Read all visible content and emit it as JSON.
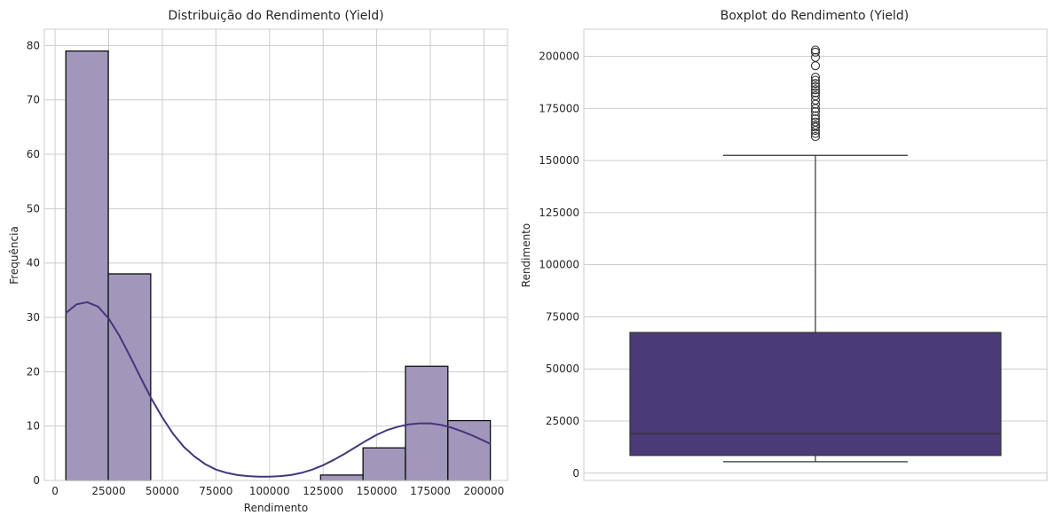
{
  "colors": {
    "hist_fill": "#a197bb",
    "hist_edge": "#000000",
    "kde": "#46357d",
    "box_fill": "#4a3a76",
    "box_line": "#333333",
    "grid": "#cccccc"
  },
  "chart_data": [
    {
      "type": "bar",
      "subtype": "histogram-with-kde",
      "title": "Distribuição do Rendimento (Yield)",
      "xlabel": "Rendimento",
      "ylabel": "Frequência",
      "xlim": [
        -5000,
        211000
      ],
      "ylim": [
        0,
        83
      ],
      "xticks": [
        0,
        25000,
        50000,
        75000,
        100000,
        125000,
        150000,
        175000,
        200000
      ],
      "yticks": [
        0,
        10,
        20,
        30,
        40,
        50,
        60,
        70,
        80
      ],
      "bins": [
        {
          "start": 5000,
          "end": 24800,
          "count": 79
        },
        {
          "start": 24800,
          "end": 44600,
          "count": 38
        },
        {
          "start": 44600,
          "end": 64400,
          "count": 0
        },
        {
          "start": 64400,
          "end": 84200,
          "count": 0
        },
        {
          "start": 84200,
          "end": 104000,
          "count": 0
        },
        {
          "start": 104000,
          "end": 123800,
          "count": 0
        },
        {
          "start": 123800,
          "end": 143600,
          "count": 1
        },
        {
          "start": 143600,
          "end": 163400,
          "count": 6
        },
        {
          "start": 163400,
          "end": 183200,
          "count": 21
        },
        {
          "start": 183200,
          "end": 203000,
          "count": 11
        }
      ],
      "kde": {
        "x": [
          5000,
          10000,
          15000,
          20000,
          25000,
          30000,
          35000,
          40000,
          45000,
          50000,
          55000,
          60000,
          65000,
          70000,
          75000,
          80000,
          85000,
          90000,
          95000,
          100000,
          105000,
          110000,
          115000,
          120000,
          125000,
          130000,
          135000,
          140000,
          145000,
          150000,
          155000,
          160000,
          165000,
          170000,
          175000,
          180000,
          185000,
          190000,
          195000,
          200000,
          203000
        ],
        "y": [
          30.8,
          32.4,
          32.8,
          32.0,
          29.8,
          26.6,
          22.8,
          18.8,
          15.0,
          11.6,
          8.6,
          6.2,
          4.4,
          3.0,
          2.0,
          1.4,
          1.0,
          0.8,
          0.7,
          0.7,
          0.8,
          1.0,
          1.4,
          2.0,
          2.8,
          3.8,
          4.9,
          6.1,
          7.3,
          8.4,
          9.3,
          9.9,
          10.3,
          10.5,
          10.5,
          10.2,
          9.7,
          9.0,
          8.2,
          7.3,
          6.7
        ]
      },
      "grid": true
    },
    {
      "type": "boxplot",
      "title": "Boxplot do Rendimento (Yield)",
      "ylabel": "Rendimento",
      "xlabel": "",
      "ylim": [
        -3500,
        213000
      ],
      "yticks": [
        0,
        25000,
        50000,
        75000,
        100000,
        125000,
        150000,
        175000,
        200000
      ],
      "box": {
        "whisker_low": 5500,
        "q1": 8500,
        "median": 19000,
        "q3": 67500,
        "whisker_high": 152500
      },
      "outliers": [
        161500,
        163000,
        164500,
        166000,
        167000,
        168500,
        170000,
        171500,
        173500,
        175000,
        177000,
        179000,
        181000,
        182500,
        184000,
        185500,
        187000,
        188500,
        190000,
        195500,
        199500,
        202000,
        203000
      ],
      "grid": true
    }
  ]
}
